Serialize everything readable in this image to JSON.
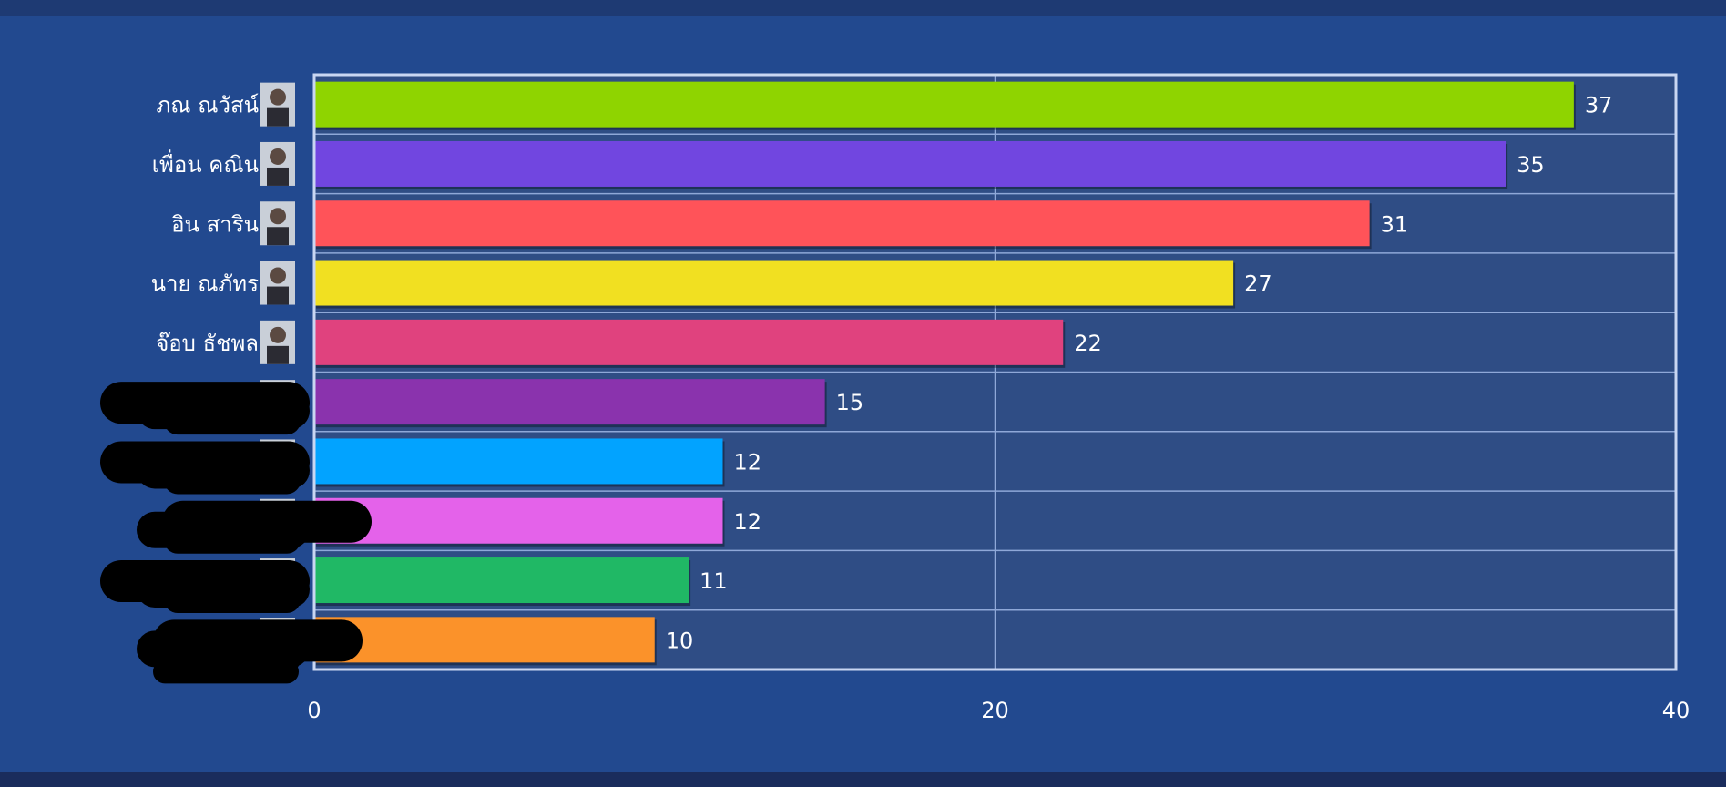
{
  "colors": {
    "page_background": "#22498f",
    "top_bar": "#1e3a73",
    "bottom_bar": "#1a2c5c",
    "plot_background": "#2f4d85",
    "gridline": "#8fa8d8",
    "plot_border": "#c9d6f2",
    "redaction": "#000000"
  },
  "chart_data": {
    "type": "bar",
    "orientation": "horizontal",
    "title": "",
    "xlabel": "",
    "ylabel": "",
    "xlim": [
      0,
      40
    ],
    "xticks": [
      0,
      20,
      40
    ],
    "grid": true,
    "legend": "none",
    "categories": [
      "ภณ ณวัสน์",
      "เพื่อน คณิน",
      "อิน สาริน",
      "นาย ณภัทร",
      "จ๊อบ ธัชพล",
      "",
      "",
      "",
      "",
      ""
    ],
    "values": [
      37,
      35,
      31,
      27,
      22,
      15,
      12,
      12,
      11,
      10
    ],
    "bar_colors": [
      "#8fd400",
      "#7146e0",
      "#ff5359",
      "#f1e021",
      "#e0427e",
      "#8a33ad",
      "#02a3ff",
      "#e462ea",
      "#20b865",
      "#fb922a"
    ],
    "label_avatars": [
      "avatar",
      "avatar",
      "avatar",
      "avatar",
      "avatar",
      "avatar",
      "avatar",
      "avatar",
      "avatar",
      "avatar"
    ],
    "redacted_labels": [
      false,
      false,
      false,
      false,
      false,
      true,
      true,
      true,
      true,
      true
    ]
  }
}
